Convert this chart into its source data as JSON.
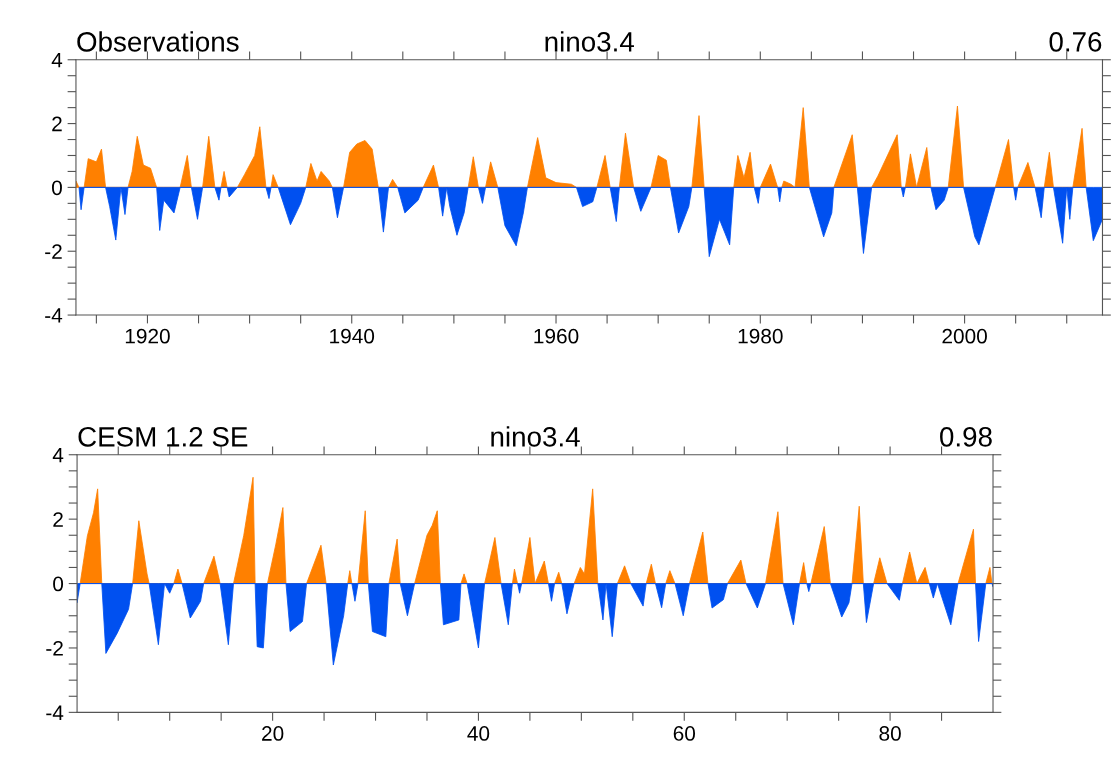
{
  "chart_data": [
    {
      "type": "area",
      "title": "nino3.4",
      "annotations": [
        "Observations",
        "0.76"
      ],
      "xlim": [
        1913,
        2013.5
      ],
      "xticks": [
        {
          "value": 1915,
          "label": null
        },
        1920,
        {
          "value": 1925,
          "label": null
        },
        {
          "value": 1930,
          "label": null
        },
        {
          "value": 1935,
          "label": null
        },
        1940,
        {
          "value": 1945,
          "label": null
        },
        {
          "value": 1950,
          "label": null
        },
        {
          "value": 1955,
          "label": null
        },
        1960,
        {
          "value": 1965,
          "label": null
        },
        {
          "value": 1970,
          "label": null
        },
        {
          "value": 1975,
          "label": null
        },
        1980,
        {
          "value": 1985,
          "label": null
        },
        {
          "value": 1990,
          "label": null
        },
        {
          "value": 1995,
          "label": null
        },
        2000,
        {
          "value": 2005,
          "label": null
        },
        {
          "value": 2010,
          "label": null
        }
      ],
      "ylim": [
        -4,
        4
      ],
      "yticks": [
        -4,
        {
          "value": -3.5,
          "label": null
        },
        {
          "value": -3,
          "label": null
        },
        {
          "value": -2.5,
          "label": null
        },
        -2,
        {
          "value": -1.5,
          "label": null
        },
        {
          "value": -1,
          "label": null
        },
        {
          "value": -0.5,
          "label": null
        },
        0,
        {
          "value": 0.5,
          "label": null
        },
        {
          "value": 1,
          "label": null
        },
        {
          "value": 1.5,
          "label": null
        },
        2,
        {
          "value": 2.5,
          "label": null
        },
        {
          "value": 3,
          "label": null
        },
        {
          "value": 3.5,
          "label": null
        },
        4
      ],
      "series": [
        {
          "color": "#ff8000",
          "x": [
            1913.0,
            1913.3,
            1913.8,
            1914.2,
            1915.0,
            1915.5,
            1915.9,
            1917.4,
            1918.1,
            1918.5,
            1919.0,
            1919.6,
            1920.3,
            1920.9,
            1923.2,
            1923.9,
            1924.3,
            1925.4,
            1926.0,
            1926.6,
            1927.2,
            1927.5,
            1927.8,
            1928.8,
            1929.5,
            1930.5,
            1931.0,
            1931.6,
            1932.1,
            1932.3,
            1932.8,
            1935.5,
            1936.0,
            1936.6,
            1937.0,
            1937.8,
            1938.1,
            1939.2,
            1939.8,
            1940.5,
            1941.3,
            1942.0,
            1942.6,
            1943.6,
            1944.0,
            1944.5,
            1947.0,
            1948.0,
            1948.5,
            1949.3,
            1951.4,
            1951.9,
            1952.4,
            1953.1,
            1953.6,
            1954.3,
            1957.2,
            1958.2,
            1959.0,
            1960.0,
            1961.5,
            1962.0,
            1964.0,
            1964.8,
            1965.3,
            1966.2,
            1966.8,
            1967.6,
            1969.3,
            1970.0,
            1970.8,
            1971.2,
            1973.3,
            1974.0,
            1974.5,
            1977.4,
            1977.8,
            1978.4,
            1979.0,
            1979.4,
            1980.0,
            1981.0,
            1981.5,
            1981.7,
            1982.1,
            1982.3,
            1983.0,
            1983.4,
            1984.2,
            1984.8,
            1987.2,
            1989.0,
            1989.5,
            1990.9,
            1991.5,
            1993.4,
            1993.8,
            1994.2,
            1994.7,
            1995.3,
            1996.3,
            1996.7,
            1998.4,
            1999.3,
            1999.9,
            2003.0,
            2004.3,
            2004.8,
            2005.2,
            2006.2,
            2006.9,
            2007.8,
            2008.3,
            2008.7,
            2010.0,
            2010.6,
            2011.5,
            2011.9
          ],
          "values": [
            0.2,
            0,
            0,
            0.9,
            0.8,
            1.2,
            0,
            0,
            0,
            0.5,
            1.6,
            0.7,
            0.6,
            0,
            0,
            1.0,
            0,
            0,
            1.6,
            0,
            0,
            0.5,
            0,
            0,
            0.4,
            1.0,
            1.9,
            0,
            0,
            0.4,
            0,
            0,
            0.75,
            0.2,
            0.5,
            0.2,
            0,
            0,
            1.1,
            1.36,
            1.47,
            1.2,
            0,
            0,
            0.25,
            0,
            0,
            0.7,
            0,
            0,
            0,
            0.96,
            0,
            0,
            0.8,
            0,
            0,
            1.56,
            0.3,
            0.15,
            0.1,
            0,
            0,
            1.0,
            0,
            0,
            1.7,
            0,
            0,
            1.0,
            0.85,
            0,
            0,
            2.25,
            0,
            0,
            1.0,
            0.3,
            1.1,
            0,
            0,
            0.73,
            0.2,
            0,
            0,
            0.2,
            0.1,
            0,
            2.5,
            0,
            0,
            1.65,
            0,
            0,
            0.35,
            1.65,
            0,
            0,
            1.05,
            0,
            1.25,
            0,
            0,
            2.55,
            0,
            0,
            1.5,
            0,
            0,
            0.78,
            0,
            0,
            1.1,
            0,
            0,
            0,
            1.85,
            0
          ]
        },
        {
          "color": "#0050f0",
          "x": [
            1913.3,
            1913.5,
            1913.8,
            1915.9,
            1916.3,
            1916.9,
            1917.4,
            1917.8,
            1918.1,
            1920.9,
            1921.2,
            1921.6,
            1922.6,
            1923.2,
            1924.3,
            1924.9,
            1925.4,
            1926.6,
            1927.0,
            1927.2,
            1927.8,
            1928.0,
            1928.8,
            1931.6,
            1931.9,
            1932.1,
            1932.8,
            1934.0,
            1935.0,
            1935.5,
            1938.1,
            1938.6,
            1939.2,
            1942.6,
            1943.1,
            1943.6,
            1944.5,
            1945.2,
            1946.5,
            1947.0,
            1948.5,
            1948.9,
            1949.3,
            1949.6,
            1950.3,
            1951.0,
            1951.4,
            1952.4,
            1952.8,
            1953.1,
            1954.3,
            1955.0,
            1956.1,
            1956.8,
            1957.2,
            1962.0,
            1962.6,
            1963.6,
            1964.0,
            1965.3,
            1965.9,
            1966.2,
            1967.6,
            1968.3,
            1969.3,
            1971.2,
            1972.0,
            1973.0,
            1973.3,
            1974.5,
            1975.0,
            1976.0,
            1977.0,
            1977.4,
            1979.4,
            1979.8,
            1980.0,
            1981.7,
            1981.9,
            1982.1,
            1983.4,
            1984.8,
            1986.2,
            1987.0,
            1987.2,
            1989.5,
            1990.1,
            1990.9,
            1993.8,
            1994.0,
            1994.2,
            1996.7,
            1997.2,
            1998.0,
            1998.4,
            1999.9,
            2001.0,
            2001.4,
            2002.3,
            2003.0,
            2004.8,
            2005.0,
            2005.2,
            2006.9,
            2007.5,
            2007.8,
            2008.7,
            2009.6,
            2010.0,
            2010.3,
            2010.6,
            2011.9,
            2012.6,
            2013.5
          ],
          "values": [
            0,
            -0.7,
            0,
            0,
            -0.6,
            -1.65,
            0,
            -0.85,
            0,
            0,
            -1.35,
            -0.4,
            -0.8,
            0,
            0,
            -1.0,
            0,
            0,
            -0.4,
            0,
            0,
            -0.3,
            0,
            0,
            -0.35,
            0,
            0,
            -1.17,
            -0.5,
            0,
            0,
            -0.95,
            0,
            0,
            -1.4,
            0,
            0,
            -0.8,
            -0.4,
            0,
            0,
            -0.9,
            0,
            -0.6,
            -1.5,
            -0.8,
            0,
            0,
            -0.5,
            0,
            0,
            -1.2,
            -1.83,
            -0.8,
            0,
            0,
            -0.6,
            -0.45,
            0,
            0,
            -1.07,
            0,
            0,
            -0.75,
            0,
            0,
            -1.43,
            -0.6,
            0,
            0,
            -2.17,
            -1.0,
            -1.8,
            0,
            0,
            -0.5,
            0,
            0,
            -0.45,
            0,
            0,
            0,
            -1.55,
            -0.8,
            0,
            0,
            -2.07,
            0,
            0,
            -0.3,
            0,
            0,
            -0.7,
            -0.4,
            0,
            0,
            -1.55,
            -1.8,
            -0.8,
            0,
            0,
            -0.4,
            0,
            0,
            -0.95,
            0,
            0,
            -1.75,
            0,
            -1.0,
            0,
            0,
            -1.67,
            -1.0
          ]
        }
      ]
    },
    {
      "type": "area",
      "title": "nino3.4",
      "annotations": [
        "CESM 1.2 SE",
        "0.98"
      ],
      "xlim": [
        1,
        90
      ],
      "xticks": [
        {
          "value": 5,
          "label": null
        },
        {
          "value": 10,
          "label": null
        },
        {
          "value": 15,
          "label": null
        },
        20,
        {
          "value": 25,
          "label": null
        },
        {
          "value": 30,
          "label": null
        },
        {
          "value": 35,
          "label": null
        },
        40,
        {
          "value": 45,
          "label": null
        },
        {
          "value": 50,
          "label": null
        },
        {
          "value": 55,
          "label": null
        },
        60,
        {
          "value": 65,
          "label": null
        },
        {
          "value": 70,
          "label": null
        },
        {
          "value": 75,
          "label": null
        },
        80,
        {
          "value": 85,
          "label": null
        }
      ],
      "ylim": [
        -4,
        4
      ],
      "yticks": [
        -4,
        {
          "value": -3.5,
          "label": null
        },
        {
          "value": -3,
          "label": null
        },
        {
          "value": -2.5,
          "label": null
        },
        -2,
        {
          "value": -1.5,
          "label": null
        },
        {
          "value": -1,
          "label": null
        },
        {
          "value": -0.5,
          "label": null
        },
        0,
        {
          "value": 0.5,
          "label": null
        },
        {
          "value": 1,
          "label": null
        },
        {
          "value": 1.5,
          "label": null
        },
        2,
        {
          "value": 2.5,
          "label": null
        },
        {
          "value": 3,
          "label": null
        },
        {
          "value": 3.5,
          "label": null
        },
        4
      ],
      "series": [
        {
          "color": "#ff8000",
          "x": [
            1.3,
            2.0,
            2.6,
            3.0,
            3.4,
            6.4,
            7.0,
            7.8,
            8.0,
            10.4,
            10.8,
            11.2,
            13.3,
            14.3,
            14.9,
            16.2,
            17.2,
            18.1,
            18.3,
            19.5,
            20.3,
            21.0,
            21.3,
            23.3,
            24.7,
            25.2,
            27.3,
            27.5,
            27.7,
            28.3,
            29.0,
            29.3,
            31.3,
            32.1,
            32.4,
            33.8,
            35.0,
            35.5,
            36.0,
            36.3,
            38.3,
            38.6,
            38.9,
            40.6,
            41.6,
            42.2,
            43.3,
            43.5,
            43.8,
            44.2,
            45.0,
            45.5,
            46.4,
            46.8,
            47.4,
            47.8,
            48.1,
            49.3,
            49.9,
            50.3,
            51.1,
            51.6,
            53.5,
            54.2,
            54.8,
            56.3,
            56.8,
            57.2,
            58.2,
            58.6,
            59.1,
            60.5,
            61.8,
            62.3,
            64.2,
            65.5,
            66.0,
            67.9,
            69.1,
            69.6,
            71.2,
            71.6,
            71.9,
            72.3,
            73.6,
            74.2,
            76.3,
            77.0,
            77.4,
            78.4,
            79.0,
            79.7,
            81.2,
            81.9,
            82.6,
            83.4,
            83.8,
            86.6,
            88.1,
            88.3,
            89.3,
            89.7,
            89.9
          ],
          "values": [
            0,
            1.48,
            2.2,
            2.94,
            0,
            0,
            1.95,
            0.3,
            0,
            0,
            0.45,
            0,
            0,
            0.85,
            0,
            0,
            1.5,
            3.3,
            0,
            0,
            1.2,
            2.36,
            0,
            0,
            1.19,
            0,
            0,
            0.4,
            0,
            0,
            2.26,
            0,
            0,
            1.38,
            0,
            0,
            1.5,
            1.8,
            2.26,
            0,
            0,
            0.3,
            0,
            0,
            1.43,
            0,
            0,
            0.45,
            0,
            0,
            1.43,
            0,
            0.7,
            0,
            0,
            0.35,
            0,
            0,
            0.5,
            0.3,
            2.94,
            0,
            0,
            0.55,
            0,
            0,
            0.6,
            0,
            0,
            0.4,
            0,
            0,
            1.6,
            0,
            0,
            0.73,
            0,
            0,
            2.23,
            0,
            0,
            0.65,
            0,
            0,
            1.77,
            0,
            0,
            2.4,
            0,
            0,
            0.8,
            0,
            0,
            0.98,
            0,
            0.5,
            0,
            0,
            1.69,
            0,
            0,
            0.5,
            0
          ]
        },
        {
          "color": "#0050f0",
          "x": [
            1.0,
            1.3,
            3.4,
            3.8,
            4.9,
            6.0,
            6.4,
            8.0,
            8.9,
            9.5,
            10.0,
            10.4,
            11.2,
            12.0,
            13.0,
            13.3,
            14.9,
            15.7,
            16.2,
            18.3,
            18.5,
            19.1,
            19.5,
            21.3,
            21.7,
            22.9,
            23.3,
            25.2,
            25.9,
            26.9,
            27.3,
            27.7,
            28.0,
            28.3,
            29.3,
            29.7,
            31.0,
            31.3,
            32.4,
            33.1,
            33.8,
            36.3,
            36.6,
            38.1,
            38.3,
            38.9,
            40.0,
            40.6,
            42.2,
            42.9,
            43.3,
            43.8,
            44.0,
            44.2,
            46.8,
            47.1,
            47.4,
            48.1,
            48.6,
            49.3,
            51.6,
            52.1,
            52.4,
            53.0,
            53.5,
            54.8,
            56.0,
            56.3,
            57.2,
            57.8,
            58.2,
            59.1,
            59.9,
            60.5,
            62.3,
            62.7,
            63.8,
            64.2,
            66.0,
            67.1,
            67.9,
            69.6,
            70.6,
            71.2,
            71.9,
            72.1,
            72.3,
            74.2,
            75.3,
            76.0,
            76.3,
            77.4,
            77.7,
            78.4,
            79.7,
            80.9,
            81.2,
            83.8,
            84.2,
            84.6,
            85.9,
            86.6,
            88.3,
            88.6,
            89.3,
            89.9,
            90.0
          ],
          "values": [
            -0.6,
            0,
            0,
            -2.17,
            -1.54,
            -0.8,
            0,
            0,
            -1.9,
            0,
            -0.3,
            0,
            0,
            -1.07,
            -0.55,
            0,
            0,
            -1.9,
            0,
            0,
            -1.96,
            -2.0,
            0,
            0,
            -1.49,
            -1.18,
            0,
            0,
            -2.53,
            -1.0,
            0,
            0,
            -0.55,
            0,
            0,
            -1.49,
            -1.65,
            0,
            0,
            -1.0,
            0,
            0,
            -1.28,
            -1.13,
            0,
            0,
            -2.0,
            0,
            0,
            -1.28,
            0,
            0,
            -0.3,
            0,
            0,
            -0.55,
            0,
            0,
            -0.94,
            0,
            0,
            -1.13,
            0,
            -1.65,
            0,
            0,
            -0.7,
            0,
            0,
            -0.75,
            0,
            0,
            -1.0,
            0,
            0,
            -0.76,
            -0.5,
            0,
            0,
            -0.76,
            0,
            0,
            -1.28,
            0,
            0,
            -0.25,
            0,
            0,
            -1.04,
            -0.6,
            0,
            0,
            -1.21,
            0,
            0,
            -0.52,
            0,
            0,
            -0.45,
            0,
            -1.28,
            0,
            0,
            -1.8,
            0,
            0,
            -0.1
          ]
        }
      ]
    }
  ]
}
